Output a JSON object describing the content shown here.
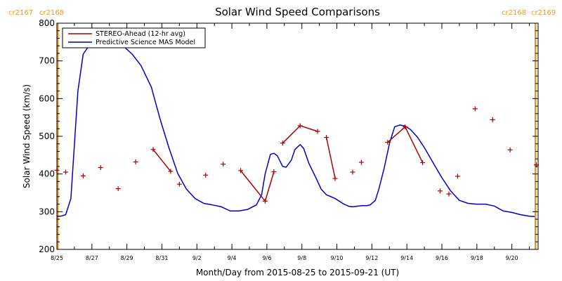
{
  "chart_data": {
    "type": "line",
    "title": "Solar Wind Speed Comparisons",
    "xlabel": "Month/Day from 2015-08-25 to 2015-09-21 (UT)",
    "ylabel": "Solar Wind Speed (km/s)",
    "xlim": [
      0,
      27.5
    ],
    "ylim": [
      200,
      800
    ],
    "y_ticks": [
      200,
      300,
      400,
      500,
      600,
      700,
      800
    ],
    "x_ticks": [
      {
        "x": 0,
        "label": "8/25"
      },
      {
        "x": 2,
        "label": "8/27"
      },
      {
        "x": 4,
        "label": "8/29"
      },
      {
        "x": 6,
        "label": "8/31"
      },
      {
        "x": 8,
        "label": "9/2"
      },
      {
        "x": 10,
        "label": "9/4"
      },
      {
        "x": 12,
        "label": "9/6"
      },
      {
        "x": 14,
        "label": "9/8"
      },
      {
        "x": 16,
        "label": "9/10"
      },
      {
        "x": 18,
        "label": "9/12"
      },
      {
        "x": 20,
        "label": "9/14"
      },
      {
        "x": 22,
        "label": "9/16"
      },
      {
        "x": 24,
        "label": "9/18"
      },
      {
        "x": 26,
        "label": "9/20"
      }
    ],
    "legend": {
      "placement": "top-left"
    },
    "carrington_labels": [
      {
        "text": "cr2167",
        "side": "left"
      },
      {
        "text": "cr2168",
        "side": "left"
      },
      {
        "text": "cr2168",
        "side": "right"
      },
      {
        "text": "cr2169",
        "side": "right"
      }
    ],
    "boundary_lines_x": [
      0.05,
      27.35
    ],
    "colors": {
      "stereo": "#aa0000",
      "model": "#0000cc",
      "boundary": "#e69a1e"
    },
    "series": [
      {
        "name": "STEREO-Ahead (12-hr avg)",
        "style": "plus-markers",
        "points": [
          [
            0.0,
            410
          ],
          [
            0.5,
            405
          ],
          [
            1.5,
            395
          ],
          [
            2.5,
            417
          ],
          [
            3.5,
            361
          ],
          [
            4.5,
            432
          ],
          [
            5.5,
            465
          ],
          [
            6.5,
            407
          ],
          [
            7.0,
            373
          ],
          [
            8.5,
            397
          ],
          [
            9.5,
            426
          ],
          [
            10.5,
            409
          ],
          [
            11.9,
            328
          ],
          [
            12.4,
            406
          ],
          [
            12.9,
            482
          ],
          [
            13.9,
            528
          ],
          [
            14.9,
            513
          ],
          [
            15.4,
            497
          ],
          [
            15.9,
            388
          ],
          [
            16.9,
            405
          ],
          [
            17.4,
            431
          ],
          [
            18.9,
            484
          ],
          [
            19.9,
            525
          ],
          [
            20.9,
            430
          ],
          [
            21.9,
            355
          ],
          [
            22.4,
            347
          ],
          [
            22.9,
            394
          ],
          [
            23.9,
            573
          ],
          [
            24.9,
            544
          ],
          [
            25.9,
            464
          ],
          [
            27.4,
            424
          ]
        ],
        "connected_segments": [
          [
            6,
            7
          ],
          [
            11,
            12
          ],
          [
            12,
            13
          ],
          [
            14,
            15
          ],
          [
            15,
            16
          ],
          [
            17,
            18
          ],
          [
            21,
            22
          ],
          [
            22,
            23
          ]
        ]
      },
      {
        "name": "Predictive Science MAS Model",
        "style": "line",
        "points": [
          [
            0.0,
            288
          ],
          [
            0.2,
            288
          ],
          [
            0.5,
            292
          ],
          [
            0.8,
            335
          ],
          [
            1.2,
            620
          ],
          [
            1.5,
            718
          ],
          [
            1.8,
            738
          ],
          [
            2.2,
            740
          ],
          [
            2.8,
            740
          ],
          [
            3.5,
            740
          ],
          [
            3.9,
            735
          ],
          [
            4.3,
            718
          ],
          [
            4.8,
            688
          ],
          [
            5.4,
            630
          ],
          [
            5.9,
            545
          ],
          [
            6.4,
            470
          ],
          [
            6.9,
            402
          ],
          [
            7.4,
            360
          ],
          [
            7.9,
            335
          ],
          [
            8.4,
            322
          ],
          [
            8.9,
            318
          ],
          [
            9.4,
            313
          ],
          [
            9.9,
            302
          ],
          [
            10.4,
            302
          ],
          [
            10.9,
            306
          ],
          [
            11.4,
            318
          ],
          [
            11.7,
            345
          ],
          [
            11.9,
            400
          ],
          [
            12.2,
            452
          ],
          [
            12.4,
            455
          ],
          [
            12.6,
            448
          ],
          [
            12.9,
            420
          ],
          [
            13.1,
            418
          ],
          [
            13.4,
            437
          ],
          [
            13.6,
            465
          ],
          [
            13.9,
            478
          ],
          [
            14.1,
            468
          ],
          [
            14.4,
            428
          ],
          [
            14.8,
            390
          ],
          [
            15.1,
            360
          ],
          [
            15.4,
            345
          ],
          [
            15.9,
            335
          ],
          [
            16.4,
            320
          ],
          [
            16.7,
            314
          ],
          [
            16.9,
            313
          ],
          [
            17.4,
            316
          ],
          [
            17.7,
            316
          ],
          [
            17.9,
            318
          ],
          [
            18.2,
            330
          ],
          [
            18.4,
            360
          ],
          [
            18.7,
            415
          ],
          [
            19.0,
            480
          ],
          [
            19.3,
            525
          ],
          [
            19.6,
            530
          ],
          [
            19.9,
            527
          ],
          [
            20.2,
            518
          ],
          [
            20.6,
            498
          ],
          [
            21.0,
            470
          ],
          [
            21.5,
            430
          ],
          [
            22.0,
            390
          ],
          [
            22.5,
            355
          ],
          [
            23.0,
            330
          ],
          [
            23.5,
            322
          ],
          [
            24.0,
            320
          ],
          [
            24.5,
            320
          ],
          [
            25.0,
            315
          ],
          [
            25.5,
            302
          ],
          [
            26.0,
            298
          ],
          [
            26.5,
            292
          ],
          [
            27.0,
            288
          ],
          [
            27.3,
            287
          ]
        ]
      }
    ]
  }
}
